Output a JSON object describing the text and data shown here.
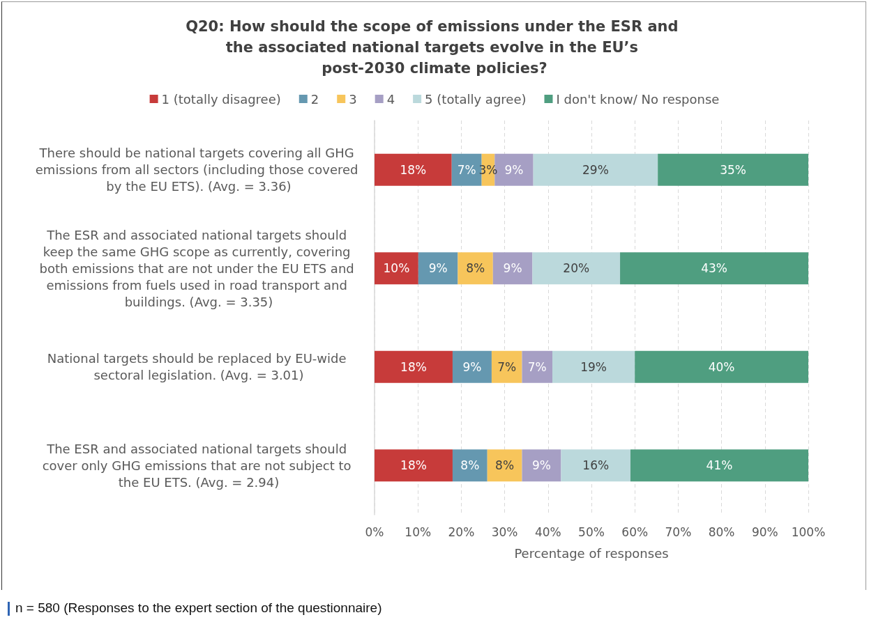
{
  "chart_data": {
    "type": "bar",
    "orientation": "horizontal",
    "stacked": true,
    "title": "Q20: How should the scope of emissions under the ESR and the associated national targets evolve in the EU’s post-2030 climate policies?",
    "categories": [
      "There should be national targets covering all GHG emissions from all sectors (including those covered by the EU ETS). (Avg. = 3.36)",
      "The ESR and associated national targets should keep the same GHG scope as currently, covering both emissions that are not under the EU ETS and emissions from fuels used in road transport and buildings. (Avg. = 3.35)",
      "National targets should be replaced by EU-wide sectoral legislation. (Avg. = 3.01)",
      "The ESR and associated national targets should cover only GHG emissions that are not subject to the EU ETS. (Avg. = 2.94)"
    ],
    "series": [
      {
        "name": "1 (totally disagree)",
        "color": "#c73b3a",
        "values": [
          17.8,
          10.1,
          18,
          18
        ],
        "value_labels": [
          "18%",
          "10%",
          "18%",
          "18%"
        ]
      },
      {
        "name": "2",
        "color": "#6598b0",
        "values": [
          6.9,
          9.1,
          9,
          8
        ],
        "value_labels": [
          "7%",
          "9%",
          "9%",
          "8%"
        ]
      },
      {
        "name": "3",
        "color": "#f7c55b",
        "values": [
          3.0,
          8.1,
          7,
          8
        ],
        "value_labels": [
          "3%",
          "8%",
          "7%",
          "8%"
        ]
      },
      {
        "name": "4",
        "color": "#a69fc4",
        "values": [
          8.9,
          9.1,
          7,
          9
        ],
        "value_labels": [
          "9%",
          "9%",
          "7%",
          "9%"
        ]
      },
      {
        "name": "5 (totally agree)",
        "color": "#bbd9dc",
        "values": [
          28.7,
          20.2,
          19,
          16
        ],
        "value_labels": [
          "29%",
          "20%",
          "19%",
          "16%"
        ]
      },
      {
        "name": "I don't know/ No response",
        "color": "#4f9e80",
        "values": [
          34.7,
          43.4,
          40,
          41
        ],
        "value_labels": [
          "35%",
          "43%",
          "40%",
          "41%"
        ]
      }
    ],
    "xlabel": "Percentage of responses",
    "xlim": [
      0,
      100
    ],
    "xticks": [
      {
        "value": 0,
        "label": "0%"
      },
      {
        "value": 10,
        "label": "10%"
      },
      {
        "value": 20,
        "label": "20%"
      },
      {
        "value": 30,
        "label": "30%"
      },
      {
        "value": 40,
        "label": "40%"
      },
      {
        "value": 50,
        "label": "50%"
      },
      {
        "value": 60,
        "label": "60%"
      },
      {
        "value": 70,
        "label": "70%"
      },
      {
        "value": 80,
        "label": "80%"
      },
      {
        "value": 90,
        "label": "90%"
      },
      {
        "value": 100,
        "label": "100%"
      }
    ],
    "grid": "x",
    "legend": "top",
    "annotations": [
      "n = 580 (Responses to the expert section of the questionnaire)"
    ]
  }
}
